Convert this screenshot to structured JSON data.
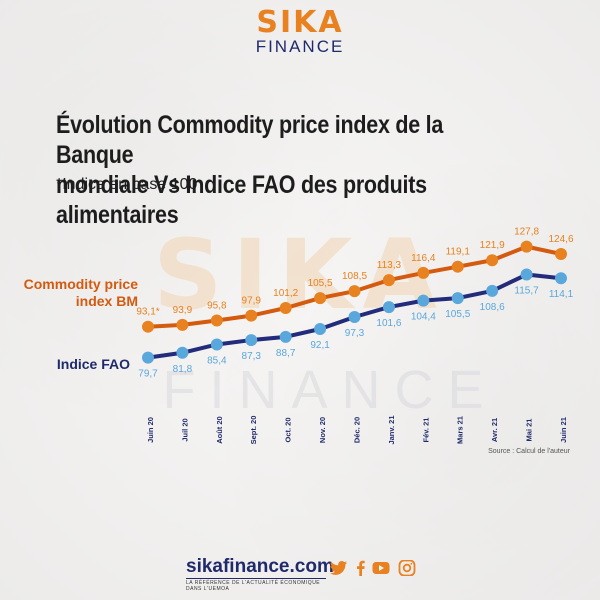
{
  "brand": {
    "logo_top": "SIKA",
    "logo_bottom": "FINANCE",
    "watermark_top": "SIKA",
    "watermark_bottom": "FINANCE"
  },
  "header": {
    "title_line1": "Évolution Commodity price index de la Banque",
    "title_line2": "mondiale Vs Indice FAO des produits alimentaires",
    "subtitle": "*Indice en base 100"
  },
  "colors": {
    "commodity": "#e8811f",
    "commodity_line": "#d45a10",
    "fao": "#5aa7dc",
    "fao_line": "#232c7a",
    "brand_orange": "#e8811f",
    "brand_navy": "#1f2a6b"
  },
  "chart_data": {
    "type": "line",
    "categories": [
      "Juin 20",
      "Juil 20",
      "Août 20",
      "Sept. 20",
      "Oct. 20",
      "Nov. 20",
      "Déc. 20",
      "Janv. 21",
      "Fév. 21",
      "Mars 21",
      "Avr. 21",
      "Mai 21",
      "Juin 21"
    ],
    "series": [
      {
        "name": "Commodity price index BM",
        "values": [
          93.1,
          93.9,
          95.8,
          97.9,
          101.2,
          105.5,
          108.5,
          113.3,
          116.4,
          119.1,
          121.9,
          127.8,
          124.6
        ],
        "labels": [
          "93,1*",
          "93,9",
          "95,8",
          "97,9",
          "101,2",
          "105,5",
          "108,5",
          "113,3",
          "116,4",
          "119,1",
          "121,9",
          "127,8",
          "124,6"
        ]
      },
      {
        "name": "Indice FAO",
        "values": [
          79.7,
          81.8,
          85.4,
          87.3,
          88.7,
          92.1,
          97.3,
          101.6,
          104.4,
          105.5,
          108.6,
          115.7,
          114.1
        ],
        "labels": [
          "79,7",
          "81,8",
          "85,4",
          "87,3",
          "88,7",
          "92,1",
          "97,3",
          "101,6",
          "104,4",
          "105,5",
          "108,6",
          "115,7",
          "114,1"
        ]
      }
    ],
    "ylim": [
      70,
      135
    ],
    "grid": false,
    "legend": "left"
  },
  "source": "Source : Calcul de l'auteur",
  "footer": {
    "site": "sikafinance.com",
    "tagline": "LA RÉFÉRENCE DE L'ACTUALITÉ ÉCONOMIQUE DANS L'UEMOA",
    "icons": [
      "twitter-icon",
      "facebook-icon",
      "youtube-icon",
      "instagram-icon"
    ]
  }
}
